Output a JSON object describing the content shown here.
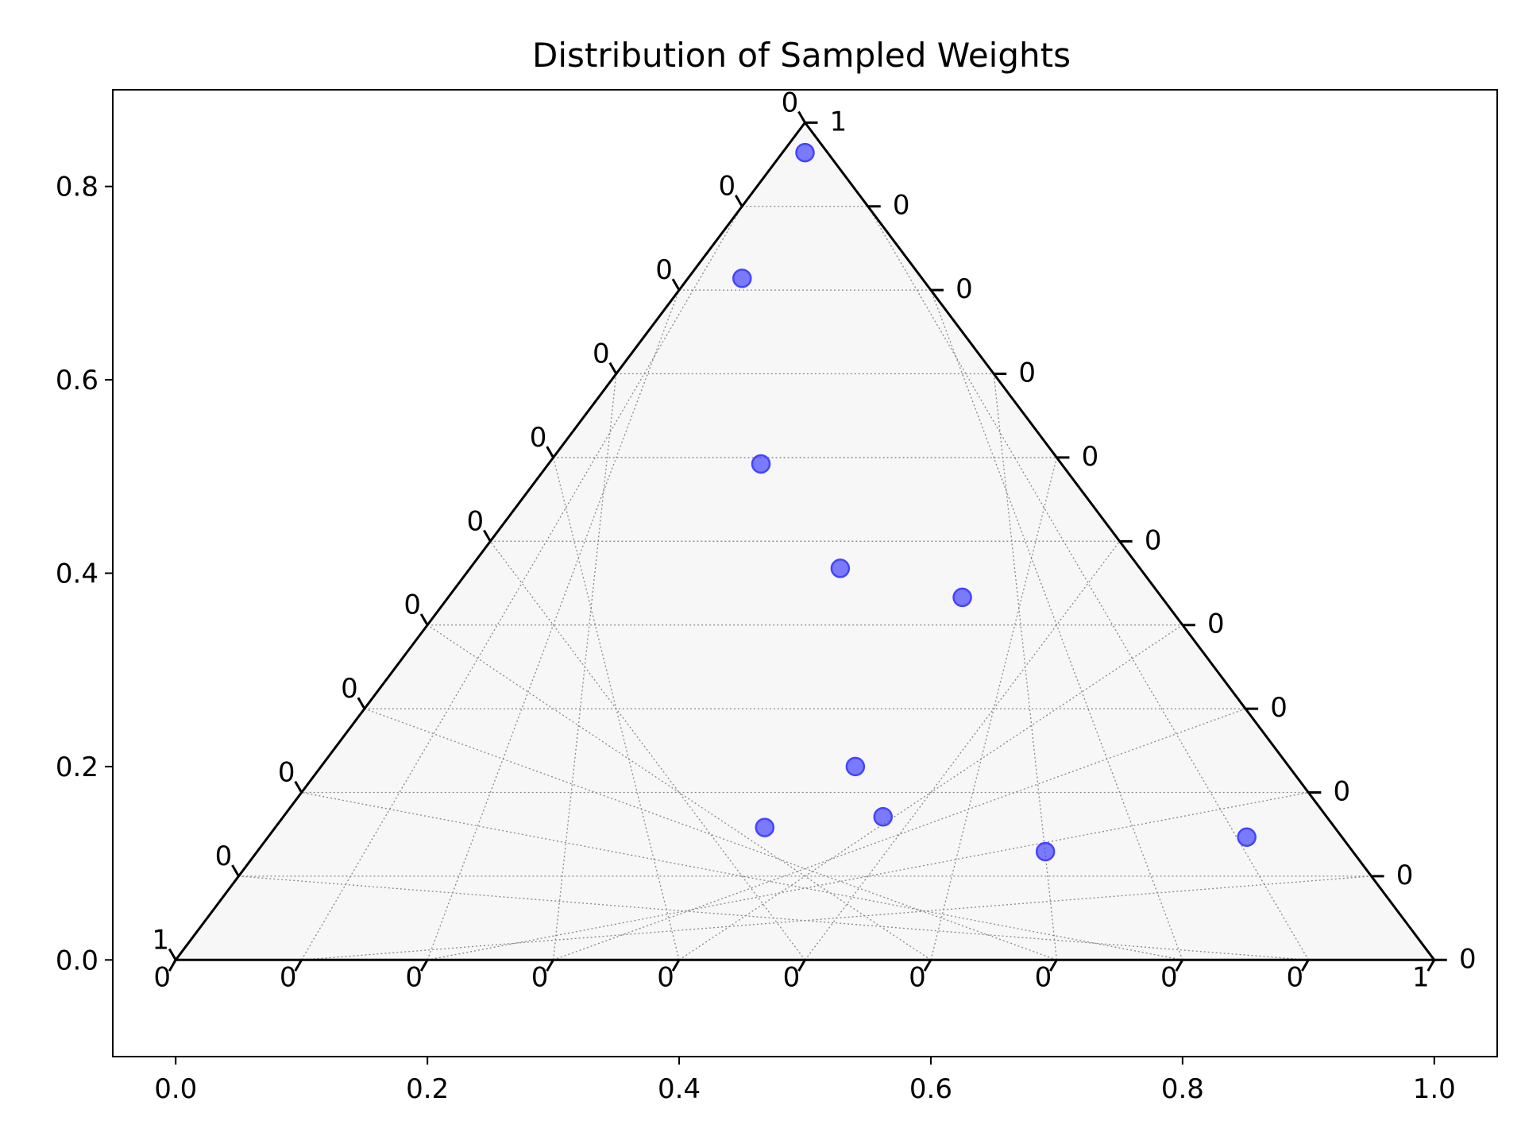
{
  "chart_data": {
    "type": "scatter",
    "title": "Distribution of Sampled Weights",
    "xlabel": "",
    "ylabel": "",
    "xlim": [
      -0.05,
      1.05
    ],
    "ylim": [
      -0.1,
      0.9
    ],
    "x_ticks": [
      "0.0",
      "0.2",
      "0.4",
      "0.6",
      "0.8",
      "1.0"
    ],
    "x_tick_values": [
      0.0,
      0.2,
      0.4,
      0.6,
      0.8,
      1.0
    ],
    "y_ticks": [
      "0.0",
      "0.2",
      "0.4",
      "0.6",
      "0.8"
    ],
    "y_tick_values": [
      0.0,
      0.2,
      0.4,
      0.6,
      0.8
    ],
    "grid": true,
    "ternary": {
      "bottom_ticks": [
        "0",
        "0",
        "0",
        "0",
        "0",
        "0",
        "0",
        "0",
        "0",
        "0",
        "1"
      ],
      "left_ticks": [
        "1",
        "0",
        "0",
        "0",
        "0",
        "0",
        "0",
        "0",
        "0",
        "0",
        "0"
      ],
      "right_ticks": [
        "0",
        "0",
        "0",
        "0",
        "0",
        "0",
        "0",
        "0",
        "0",
        "0",
        "1"
      ],
      "fill_color": "#f7f7f7",
      "grid_color": "#888888"
    },
    "series": [
      {
        "color": "#4444ff",
        "x": [
          0.5,
          0.45,
          0.465,
          0.528,
          0.625,
          0.54,
          0.562,
          0.468,
          0.691,
          0.851
        ],
        "y": [
          0.835,
          0.705,
          0.513,
          0.405,
          0.375,
          0.2,
          0.148,
          0.137,
          0.112,
          0.127
        ]
      }
    ]
  }
}
